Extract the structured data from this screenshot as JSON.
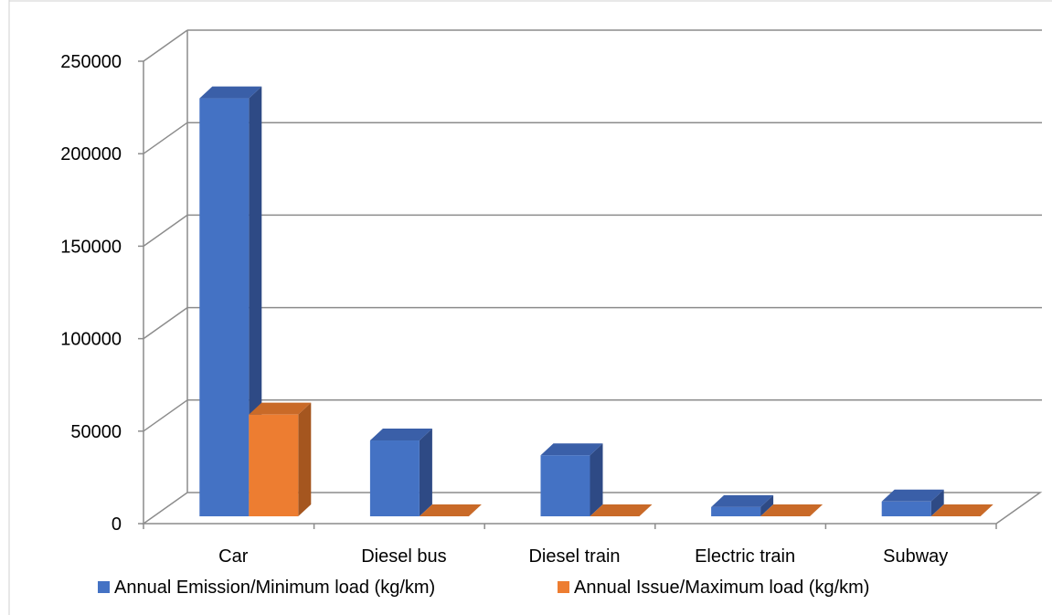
{
  "chart_data": {
    "type": "bar",
    "style": "3d-clustered-column",
    "categories": [
      "Car",
      "Diesel bus",
      "Diesel train",
      "Electric train",
      "Subway"
    ],
    "series": [
      {
        "name": "Annual Emission/Minimum load (kg/km)",
        "values": [
          226000,
          41000,
          33000,
          5000,
          8000
        ],
        "color": "#4472C4",
        "side_color": "#2E4A85",
        "top_color": "#3A5FA8"
      },
      {
        "name": "Annual Issue/Maximum load (kg/km)",
        "values": [
          55000,
          0,
          0,
          0,
          0
        ],
        "color": "#ED7D31",
        "side_color": "#A5561F",
        "top_color": "#C96A28"
      }
    ],
    "y_ticks": [
      "0",
      "50000",
      "100000",
      "150000",
      "200000",
      "250000"
    ],
    "ylim": [
      0,
      250000
    ],
    "grid": true,
    "legend_position": "bottom"
  }
}
